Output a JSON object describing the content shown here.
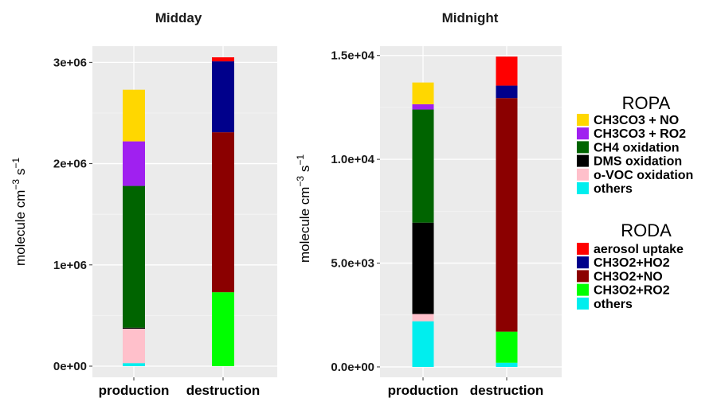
{
  "chart_data": [
    {
      "type": "bar",
      "stacked": true,
      "title": "Midday",
      "ylabel": "molecule cm-3 s-1",
      "ylim": [
        -110000,
        3160000
      ],
      "yticks": [
        0,
        1000000,
        2000000,
        3000000
      ],
      "ytick_labels": [
        "0e+00",
        "1e+06",
        "2e+06",
        "3e+06"
      ],
      "categories": [
        "production",
        "destruction"
      ],
      "grid": true,
      "stacks": {
        "production": [
          {
            "name": "others",
            "group": "ROPA",
            "value": 30000
          },
          {
            "name": "o-VOC oxidation",
            "group": "ROPA",
            "value": 340000
          },
          {
            "name": "DMS oxidation",
            "group": "ROPA",
            "value": 10000
          },
          {
            "name": "CH4 oxidation",
            "group": "ROPA",
            "value": 1400000
          },
          {
            "name": "CH3CO3 + RO2",
            "group": "ROPA",
            "value": 440000
          },
          {
            "name": "CH3CO3 + NO",
            "group": "ROPA",
            "value": 510000
          }
        ],
        "destruction": [
          {
            "name": "others",
            "group": "RODA",
            "value": 0
          },
          {
            "name": "CH3O2+RO2",
            "group": "RODA",
            "value": 730000
          },
          {
            "name": "CH3O2+NO",
            "group": "RODA",
            "value": 1580000
          },
          {
            "name": "CH3O2+HO2",
            "group": "RODA",
            "value": 700000
          },
          {
            "name": "aerosol uptake",
            "group": "RODA",
            "value": 40000
          }
        ]
      }
    },
    {
      "type": "bar",
      "stacked": true,
      "title": "Midnight",
      "ylabel": "molecule cm-3 s-1",
      "ylim": [
        -500,
        15450
      ],
      "yticks": [
        0,
        5000,
        10000,
        15000
      ],
      "ytick_labels": [
        "0.0e+00",
        "5.0e+03",
        "1.0e+04",
        "1.5e+04"
      ],
      "categories": [
        "production",
        "destruction"
      ],
      "grid": true,
      "stacks": {
        "production": [
          {
            "name": "others",
            "group": "ROPA",
            "value": 2200
          },
          {
            "name": "o-VOC oxidation",
            "group": "ROPA",
            "value": 350
          },
          {
            "name": "DMS oxidation",
            "group": "ROPA",
            "value": 4400
          },
          {
            "name": "CH4 oxidation",
            "group": "ROPA",
            "value": 5450
          },
          {
            "name": "CH3CO3 + RO2",
            "group": "ROPA",
            "value": 250
          },
          {
            "name": "CH3CO3 + NO",
            "group": "ROPA",
            "value": 1050
          }
        ],
        "destruction": [
          {
            "name": "others",
            "group": "RODA",
            "value": 200
          },
          {
            "name": "CH3O2+RO2",
            "group": "RODA",
            "value": 1500
          },
          {
            "name": "CH3O2+NO",
            "group": "RODA",
            "value": 11250
          },
          {
            "name": "CH3O2+HO2",
            "group": "RODA",
            "value": 600
          },
          {
            "name": "aerosol uptake",
            "group": "RODA",
            "value": 1400
          }
        ]
      }
    }
  ],
  "axis_label": {
    "base": "molecule  cm",
    "exp1": "−3",
    "mid": "  s",
    "exp2": "−1"
  },
  "legend": {
    "ropa": {
      "title": "ROPA",
      "items": [
        {
          "label": "CH3CO3 + NO",
          "color": "#FFD700"
        },
        {
          "label": "CH3CO3 + RO2",
          "color": "#A020F0"
        },
        {
          "label": "CH4 oxidation",
          "color": "#006400"
        },
        {
          "label": "DMS oxidation",
          "color": "#000000"
        },
        {
          "label": "o-VOC oxidation",
          "color": "#FFC0CB"
        },
        {
          "label": "others",
          "color": "#00EEEE"
        }
      ]
    },
    "roda": {
      "title": "RODA",
      "items": [
        {
          "label": "aerosol uptake",
          "color": "#FF0000"
        },
        {
          "label": "CH3O2+HO2",
          "color": "#00008B"
        },
        {
          "label": "CH3O2+NO",
          "color": "#8B0000"
        },
        {
          "label": "CH3O2+RO2",
          "color": "#00FF00"
        },
        {
          "label": "others",
          "color": "#00EEEE"
        }
      ]
    }
  },
  "colors": {
    "CH3CO3 + NO": "#FFD700",
    "CH3CO3 + RO2": "#A020F0",
    "CH4 oxidation": "#006400",
    "DMS oxidation": "#000000",
    "o-VOC oxidation": "#FFC0CB",
    "others": "#00EEEE",
    "aerosol uptake": "#FF0000",
    "CH3O2+HO2": "#00008B",
    "CH3O2+NO": "#8B0000",
    "CH3O2+RO2": "#00FF00"
  }
}
